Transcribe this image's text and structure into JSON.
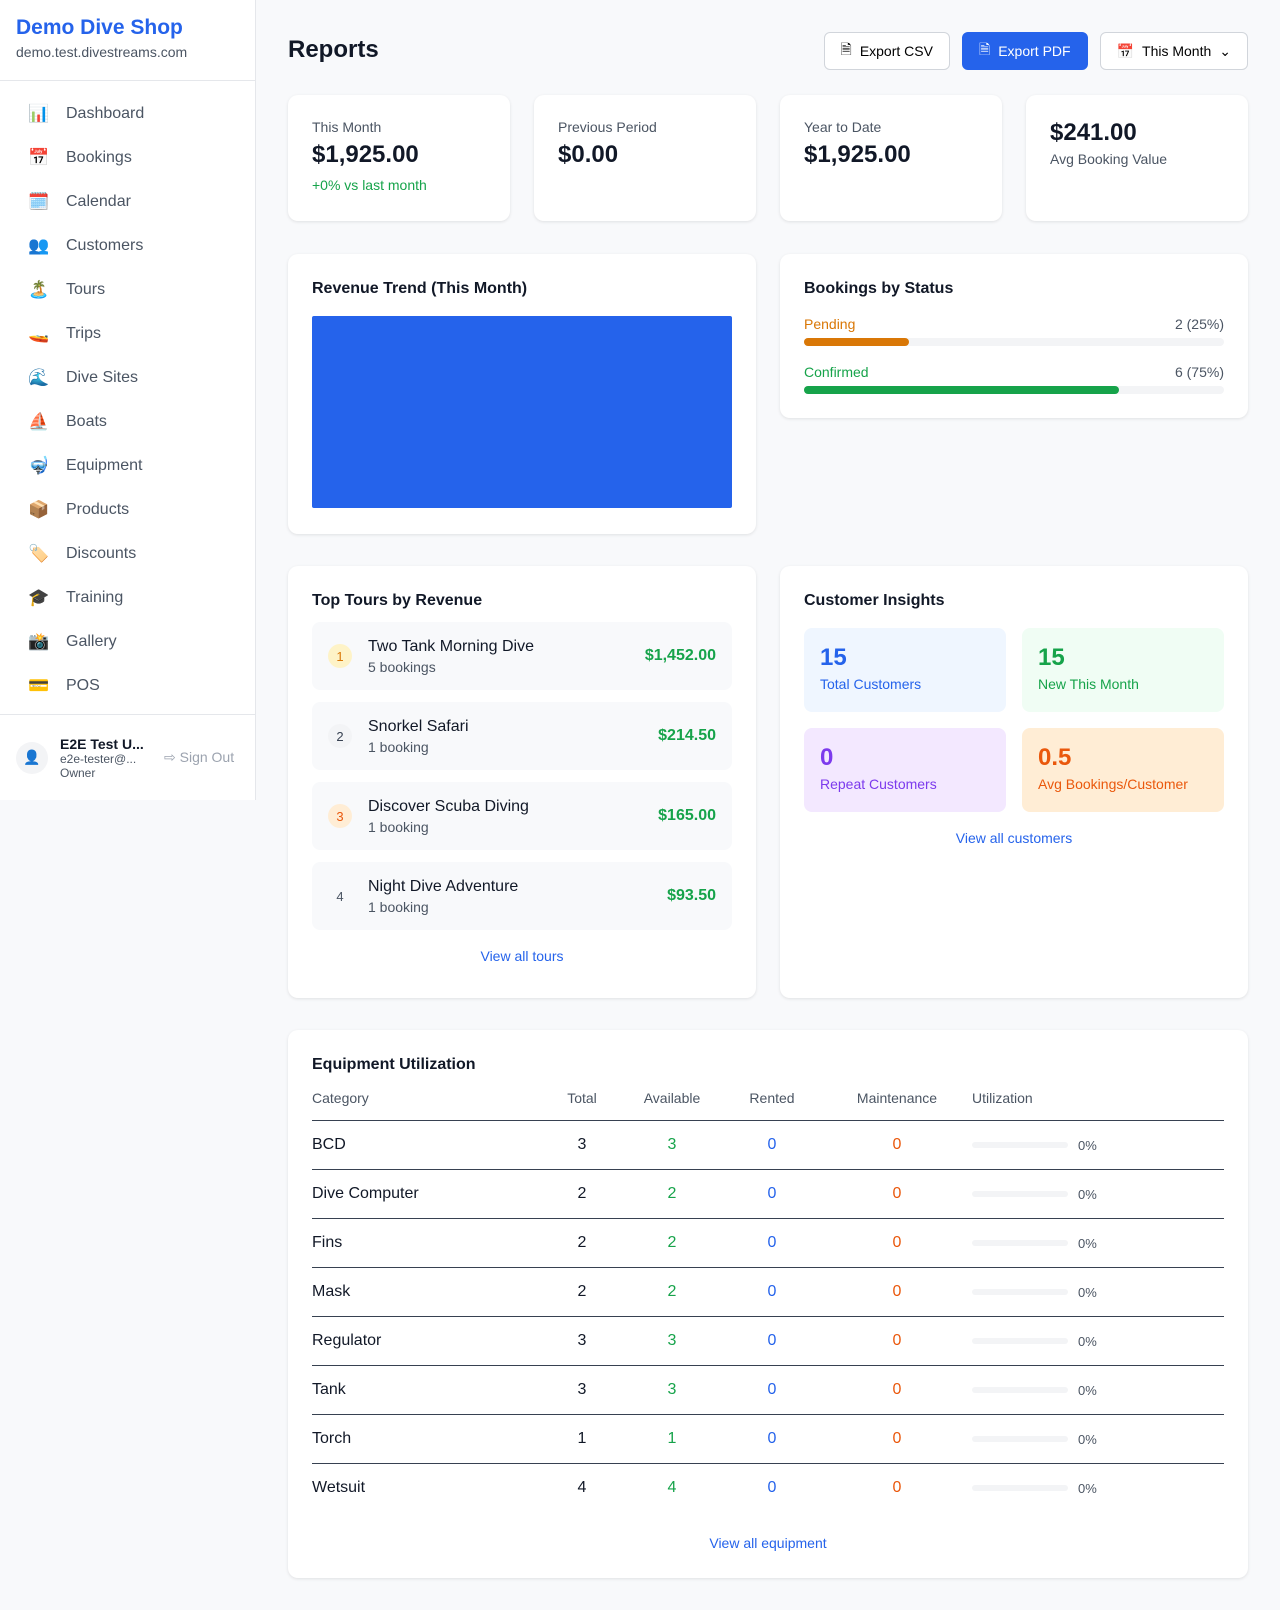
{
  "sidebar": {
    "shop_name": "Demo Dive Shop",
    "domain": "demo.test.divestreams.com",
    "items": [
      {
        "label": "Dashboard",
        "icon": "📊"
      },
      {
        "label": "Bookings",
        "icon": "📅"
      },
      {
        "label": "Calendar",
        "icon": "🗓️"
      },
      {
        "label": "Customers",
        "icon": "👥"
      },
      {
        "label": "Tours",
        "icon": "🏝️"
      },
      {
        "label": "Trips",
        "icon": "🚤"
      },
      {
        "label": "Dive Sites",
        "icon": "🌊"
      },
      {
        "label": "Boats",
        "icon": "⛵"
      },
      {
        "label": "Equipment",
        "icon": "🤿"
      },
      {
        "label": "Products",
        "icon": "📦"
      },
      {
        "label": "Discounts",
        "icon": "🏷️"
      },
      {
        "label": "Training",
        "icon": "🎓"
      },
      {
        "label": "Gallery",
        "icon": "📸"
      },
      {
        "label": "POS",
        "icon": "💳"
      }
    ],
    "user": {
      "name": "E2E Test U...",
      "email": "e2e-tester@...",
      "role": "Owner",
      "sign_out": "Sign Out"
    }
  },
  "header": {
    "title": "Reports",
    "export_csv": "Export CSV",
    "export_pdf": "Export PDF",
    "period": "This Month"
  },
  "stats": [
    {
      "label": "This Month",
      "value": "$1,925.00",
      "change": "+0% vs last month"
    },
    {
      "label": "Previous Period",
      "value": "$0.00"
    },
    {
      "label": "Year to Date",
      "value": "$1,925.00"
    },
    {
      "label": "Avg Booking Value",
      "value": "$241.00"
    }
  ],
  "revenue": {
    "title": "Revenue Trend (This Month)",
    "bar_color": "#2563eb"
  },
  "status": {
    "title": "Bookings by Status",
    "items": [
      {
        "label": "Pending",
        "value": "2 (25%)",
        "percent": 25,
        "color": "#d97706"
      },
      {
        "label": "Confirmed",
        "value": "6 (75%)",
        "percent": 75,
        "color": "#16a34a"
      }
    ]
  },
  "tours": {
    "title": "Top Tours by Revenue",
    "link": "View all tours",
    "items": [
      {
        "rank": "1",
        "name": "Two Tank Morning Dive",
        "bookings": "5 bookings",
        "revenue": "$1,452.00"
      },
      {
        "rank": "2",
        "name": "Snorkel Safari",
        "bookings": "1 booking",
        "revenue": "$214.50"
      },
      {
        "rank": "3",
        "name": "Discover Scuba Diving",
        "bookings": "1 booking",
        "revenue": "$165.00"
      },
      {
        "rank": "4",
        "name": "Night Dive Adventure",
        "bookings": "1 booking",
        "revenue": "$93.50"
      }
    ]
  },
  "customers": {
    "title": "Customer Insights",
    "link": "View all customers",
    "tiles": [
      {
        "value": "15",
        "label": "Total Customers"
      },
      {
        "value": "15",
        "label": "New This Month"
      },
      {
        "value": "0",
        "label": "Repeat Customers"
      },
      {
        "value": "0.5",
        "label": "Avg Bookings/Customer"
      }
    ]
  },
  "equipment": {
    "title": "Equipment Utilization",
    "link": "View all equipment",
    "columns": [
      "Category",
      "Total",
      "Available",
      "Rented",
      "Maintenance",
      "Utilization"
    ],
    "rows": [
      [
        "BCD",
        "3",
        "3",
        "0",
        "0",
        "0%"
      ],
      [
        "Dive Computer",
        "2",
        "2",
        "0",
        "0",
        "0%"
      ],
      [
        "Fins",
        "2",
        "2",
        "0",
        "0",
        "0%"
      ],
      [
        "Mask",
        "2",
        "2",
        "0",
        "0",
        "0%"
      ],
      [
        "Regulator",
        "3",
        "3",
        "0",
        "0",
        "0%"
      ],
      [
        "Tank",
        "3",
        "3",
        "0",
        "0",
        "0%"
      ],
      [
        "Torch",
        "1",
        "1",
        "0",
        "0",
        "0%"
      ],
      [
        "Wetsuit",
        "4",
        "4",
        "0",
        "0",
        "0%"
      ]
    ]
  }
}
